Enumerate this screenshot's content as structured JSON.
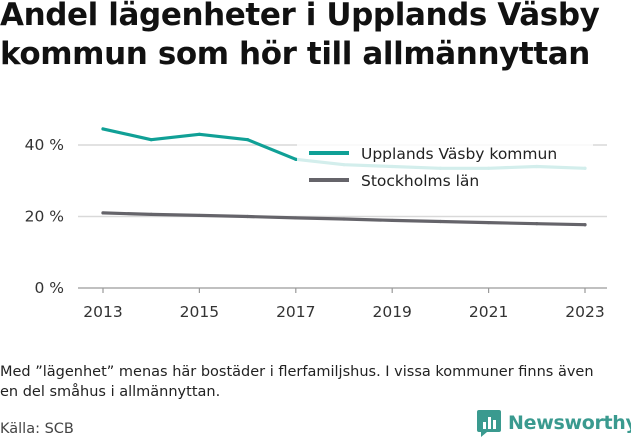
{
  "title": "Andel lägenheter i Upplands Väsby kommun som hör till allmännyttan",
  "note": "Med ”lägenhet” menas här bostäder i flerfamiljshus. I vissa kommuner finns även en del småhus i allmännyttan.",
  "source": "Källa: SCB",
  "brand": "Newsworthy",
  "chart_data": {
    "type": "line",
    "title": "Andel lägenheter i Upplands Väsby kommun som hör till allmännyttan",
    "x": [
      2013,
      2014,
      2015,
      2016,
      2017,
      2018,
      2019,
      2020,
      2021,
      2022,
      2023
    ],
    "xticks": [
      2013,
      2015,
      2017,
      2019,
      2021,
      2023
    ],
    "xtick_labels": [
      "2013",
      "2015",
      "2017",
      "2019",
      "2021",
      "2023"
    ],
    "yticks": [
      0,
      20,
      40
    ],
    "ytick_labels": [
      "0 %",
      "20 %",
      "40 %"
    ],
    "ylim": [
      0,
      47
    ],
    "grid": true,
    "legend_position": "top-right",
    "series": [
      {
        "name": "Upplands Väsby kommun",
        "color": "#10a096",
        "values": [
          44.5,
          41.5,
          43.0,
          41.5,
          36.0,
          34.5,
          34.0,
          33.5,
          33.5,
          34.0,
          33.5
        ]
      },
      {
        "name": "Stockholms län",
        "color": "#65646a",
        "values": [
          21.0,
          20.6,
          20.3,
          20.0,
          19.6,
          19.3,
          18.9,
          18.6,
          18.3,
          18.0,
          17.7
        ]
      }
    ]
  }
}
